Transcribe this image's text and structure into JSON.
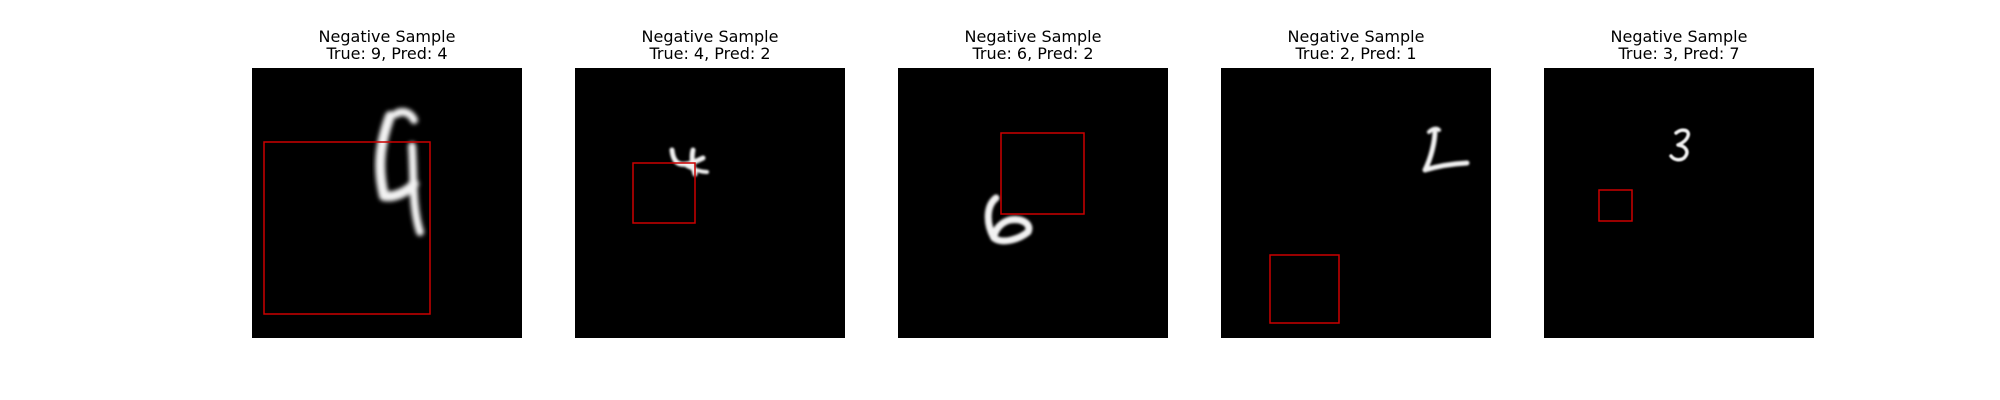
{
  "colors": {
    "background": "#ffffff",
    "image_background": "#000000",
    "digit_stroke": "#f2f2f2",
    "box_stroke": "#cc0000"
  },
  "samples": [
    {
      "title": "Negative Sample",
      "caption": "True: 9, Pred: 4"
    },
    {
      "title": "Negative Sample",
      "caption": "True: 4, Pred: 2"
    },
    {
      "title": "Negative Sample",
      "caption": "True: 6, Pred: 2"
    },
    {
      "title": "Negative Sample",
      "caption": "True: 2, Pred: 1"
    },
    {
      "title": "Negative Sample",
      "caption": "True: 3, Pred: 7"
    }
  ]
}
